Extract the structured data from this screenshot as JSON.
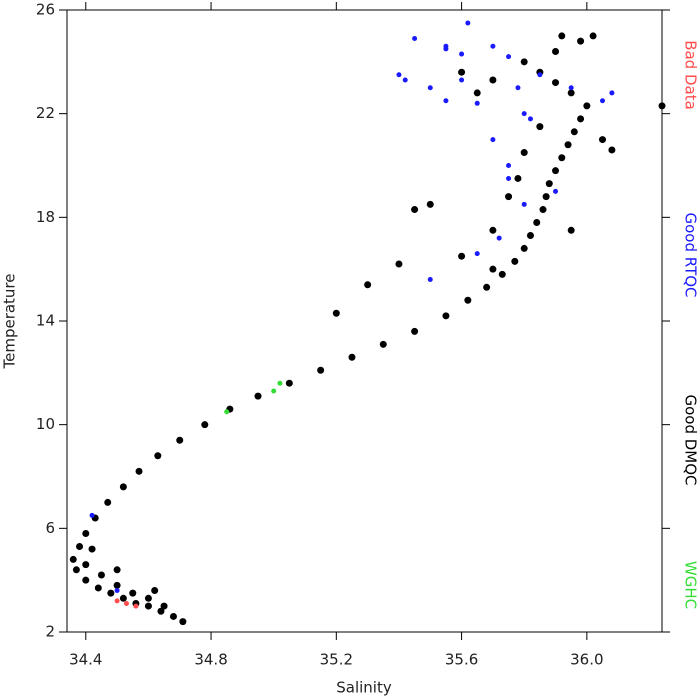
{
  "chart_data": {
    "type": "scatter",
    "x_label": "Salinity",
    "y_label": "Temperature",
    "xlim": [
      34.34,
      36.24
    ],
    "ylim": [
      2,
      26
    ],
    "xticks": [
      {
        "value": 34.4,
        "label": "34.4"
      },
      {
        "value": 34.8,
        "label": "34.8"
      },
      {
        "value": 35.2,
        "label": "35.2"
      },
      {
        "value": 35.6,
        "label": "35.6"
      },
      {
        "value": 36.0,
        "label": "36.0"
      }
    ],
    "yticks": [
      2,
      6,
      10,
      14,
      18,
      22,
      26
    ],
    "series": [
      {
        "name": "Good DMQC",
        "color": "#000000",
        "x": [
          34.71,
          34.68,
          34.64,
          34.6,
          34.56,
          34.52,
          34.48,
          34.44,
          34.4,
          34.37,
          34.36,
          34.38,
          34.4,
          34.43,
          34.47,
          34.52,
          34.57,
          34.63,
          34.7,
          34.78,
          34.86,
          34.95,
          35.05,
          35.15,
          35.25,
          35.35,
          35.45,
          35.55,
          35.62,
          35.68,
          35.73,
          35.77,
          35.8,
          35.82,
          35.84,
          35.86,
          35.87,
          35.88,
          35.9,
          35.92,
          35.94,
          35.96,
          35.98,
          36.0,
          35.95,
          35.9,
          35.85,
          35.8,
          35.9,
          35.98,
          36.02,
          35.92,
          35.7,
          35.65,
          35.6,
          36.08,
          35.5,
          35.45,
          35.4,
          35.3,
          35.2,
          35.6,
          35.7,
          35.75,
          35.7,
          35.78,
          34.45,
          34.5,
          34.55,
          34.6,
          34.65,
          34.4,
          34.42,
          34.5,
          34.62,
          35.95,
          36.05,
          36.24,
          35.85,
          35.8
        ],
        "values": [
          2.4,
          2.6,
          2.8,
          3.0,
          3.1,
          3.3,
          3.5,
          3.7,
          4.0,
          4.4,
          4.8,
          5.3,
          5.8,
          6.4,
          7.0,
          7.6,
          8.2,
          8.8,
          9.4,
          10.0,
          10.6,
          11.1,
          11.6,
          12.1,
          12.6,
          13.1,
          13.6,
          14.2,
          14.8,
          15.3,
          15.8,
          16.3,
          16.8,
          17.3,
          17.8,
          18.3,
          18.8,
          19.3,
          19.8,
          20.3,
          20.8,
          21.3,
          21.8,
          22.3,
          22.8,
          23.2,
          23.6,
          24.0,
          24.4,
          24.8,
          25.0,
          25.0,
          23.3,
          22.8,
          23.6,
          20.6,
          18.5,
          18.3,
          16.2,
          15.4,
          14.3,
          16.5,
          17.5,
          18.8,
          16.0,
          19.5,
          4.2,
          3.8,
          3.5,
          3.3,
          3.0,
          4.6,
          5.2,
          4.4,
          3.6,
          17.5,
          21.0,
          22.3,
          21.5,
          20.5
        ]
      },
      {
        "name": "Good RTQC",
        "color": "#1a1aff",
        "x": [
          35.4,
          35.45,
          35.55,
          35.6,
          35.62,
          35.7,
          35.75,
          35.5,
          35.55,
          35.6,
          35.65,
          35.8,
          35.85,
          35.95,
          36.08,
          36.05,
          35.7,
          35.75,
          35.8,
          35.72,
          35.65,
          35.5,
          35.75,
          35.82,
          34.42,
          34.5,
          35.9,
          35.42,
          35.55,
          35.78
        ],
        "values": [
          23.5,
          24.9,
          24.5,
          24.3,
          25.5,
          24.6,
          24.2,
          23.0,
          22.5,
          23.3,
          22.4,
          22.0,
          23.5,
          23.0,
          22.8,
          22.5,
          21.0,
          19.5,
          18.5,
          17.2,
          16.6,
          15.6,
          20.0,
          21.8,
          6.5,
          3.6,
          19.0,
          23.3,
          24.6,
          23.0
        ]
      },
      {
        "name": "Bad Data",
        "color": "#ff4d4d",
        "x": [
          34.53,
          34.56,
          34.5
        ],
        "values": [
          3.1,
          3.0,
          3.2
        ]
      },
      {
        "name": "WGHC",
        "color": "#33dd33",
        "x": [
          34.85,
          35.0,
          35.02
        ],
        "values": [
          10.5,
          11.3,
          11.6
        ]
      }
    ]
  }
}
